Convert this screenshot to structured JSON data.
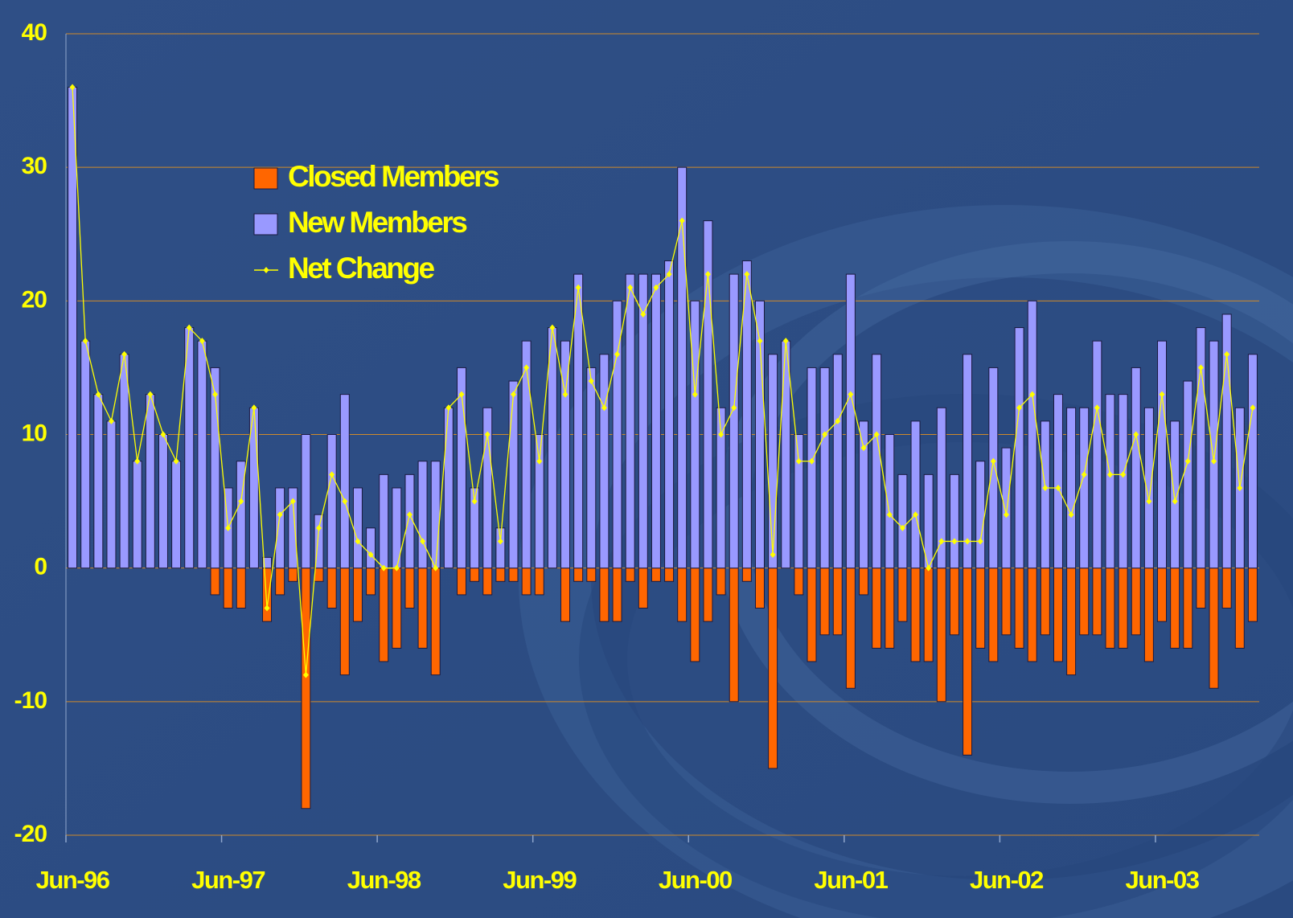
{
  "chart_data": {
    "type": "bar",
    "categories": [
      "Jun-96",
      null,
      null,
      null,
      null,
      null,
      null,
      null,
      null,
      null,
      null,
      null,
      "Jun-97",
      null,
      null,
      null,
      null,
      null,
      null,
      null,
      null,
      null,
      null,
      null,
      "Jun-98",
      null,
      null,
      null,
      null,
      null,
      null,
      null,
      null,
      null,
      null,
      null,
      "Jun-99",
      null,
      null,
      null,
      null,
      null,
      null,
      null,
      null,
      null,
      null,
      null,
      "Jun-00",
      null,
      null,
      null,
      null,
      null,
      null,
      null,
      null,
      null,
      null,
      null,
      "Jun-01",
      null,
      null,
      null,
      null,
      null,
      null,
      null,
      null,
      null,
      null,
      null,
      "Jun-02",
      null,
      null,
      null,
      null,
      null,
      null,
      null,
      null,
      null,
      null,
      null,
      "Jun-03",
      null,
      null,
      null,
      null,
      null,
      null,
      null
    ],
    "series": [
      {
        "name": "Closed Members",
        "color": "#ff6600",
        "type": "bar",
        "values": [
          0,
          0,
          0,
          0,
          0,
          0,
          0,
          0,
          0,
          0,
          0,
          -2,
          -3,
          -3,
          0,
          -4,
          -2,
          -1,
          -18,
          -1,
          -3,
          -8,
          -4,
          -2,
          -7,
          -6,
          -3,
          -6,
          -8,
          0,
          -2,
          -1,
          -2,
          -1,
          -1,
          -2,
          -2,
          0,
          -4,
          -1,
          -1,
          -4,
          -4,
          -1,
          -3,
          -1,
          -1,
          -4,
          -7,
          -4,
          -2,
          -10,
          -1,
          -3,
          -15,
          0,
          -2,
          -7,
          -5,
          -5,
          -9,
          -2,
          -6,
          -6,
          -4,
          -7,
          -7,
          -10,
          -5,
          -14,
          -6,
          -7,
          -5,
          -6,
          -7,
          -5,
          -7,
          -8,
          -5,
          -5,
          -6,
          -6,
          -5,
          -7,
          -4,
          -6,
          -6,
          -3,
          -9,
          -3,
          -6,
          -4
        ]
      },
      {
        "name": "New Members",
        "color": "#9999ff",
        "type": "bar",
        "values": [
          36,
          17,
          13,
          11,
          16,
          8,
          13,
          10,
          8,
          18,
          17,
          15,
          6,
          8,
          12,
          0.8,
          6,
          6,
          10,
          4,
          10,
          13,
          6,
          3,
          7,
          6,
          7,
          8,
          8,
          12,
          15,
          6,
          12,
          3,
          14,
          17,
          10,
          18,
          17,
          22,
          15,
          16,
          20,
          22,
          22,
          22,
          23,
          30,
          20,
          26,
          12,
          22,
          23,
          20,
          16,
          17,
          10,
          15,
          15,
          16,
          22,
          11,
          16,
          10,
          7,
          11,
          7,
          12,
          7,
          16,
          8,
          15,
          9,
          18,
          20,
          11,
          13,
          12,
          12,
          17,
          13,
          13,
          15,
          12,
          17,
          11,
          14,
          18,
          17,
          19,
          12,
          16
        ]
      },
      {
        "name": "Net Change",
        "color": "#ffff00",
        "type": "line",
        "values": [
          36,
          17,
          13,
          11,
          16,
          8,
          13,
          10,
          8,
          18,
          17,
          13,
          3,
          5,
          12,
          -3,
          4,
          5,
          -8,
          3,
          7,
          5,
          2,
          1,
          0,
          0,
          4,
          2,
          0,
          12,
          13,
          5,
          10,
          2,
          13,
          15,
          8,
          18,
          13,
          21,
          14,
          12,
          16,
          21,
          19,
          21,
          22,
          26,
          13,
          22,
          10,
          12,
          22,
          17,
          1,
          17,
          8,
          8,
          10,
          11,
          13,
          9,
          10,
          4,
          3,
          4,
          0,
          2,
          2,
          2,
          2,
          8,
          4,
          12,
          13,
          6,
          6,
          4,
          7,
          12,
          7,
          7,
          10,
          5,
          13,
          5,
          8,
          15,
          8,
          16,
          6,
          12
        ]
      }
    ],
    "ylim": [
      -20,
      40
    ],
    "yticks": [
      -20,
      -10,
      0,
      10,
      20,
      30,
      40
    ],
    "grid": true,
    "legend": "upper left"
  }
}
